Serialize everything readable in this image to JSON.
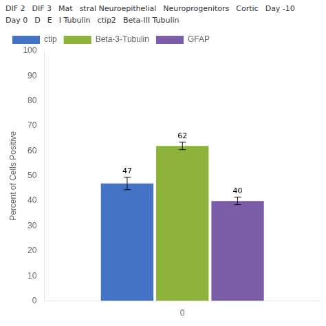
{
  "chart_data": {
    "type": "bar",
    "categories": [
      "0"
    ],
    "series": [
      {
        "name": "ctip",
        "color": "#4472C4",
        "values": [
          47
        ],
        "errors": [
          2.5
        ]
      },
      {
        "name": "Beta-3-Tubulin",
        "color": "#8DB33A",
        "values": [
          62
        ],
        "errors": [
          1.5
        ]
      },
      {
        "name": "GFAP",
        "color": "#7B5EA7",
        "values": [
          40
        ],
        "errors": [
          1.5
        ]
      }
    ],
    "ylabel": "Percent of Cells Positive",
    "ylim": [
      0,
      100
    ],
    "yticks": [
      0,
      10,
      20,
      30,
      40,
      50,
      60,
      70,
      80,
      90,
      100
    ],
    "grid": false,
    "legend": "upper left",
    "data_labels": true,
    "annotations": [
      "DIF 2",
      "DIF 3",
      "Mat",
      "stral Neuroepithelial",
      "Neuroprogenitors",
      "Cortic",
      "Day -10",
      "Day 0",
      "D",
      "E",
      "I Tubulin",
      "ctip2",
      "Beta-III Tubulin"
    ]
  }
}
